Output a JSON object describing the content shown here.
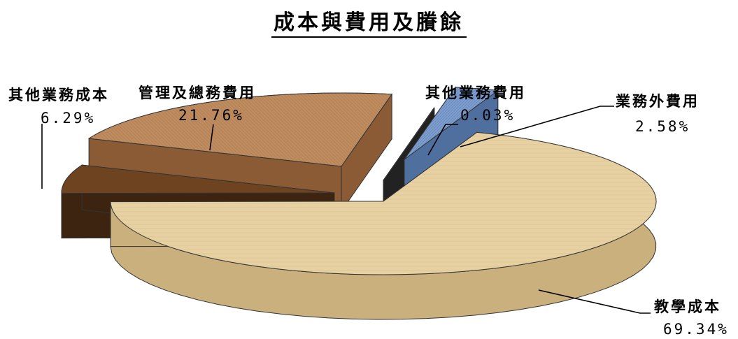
{
  "chart_data": {
    "type": "pie",
    "style": "3d-exploded",
    "title": "成本與費用及賸餘",
    "slices": [
      {
        "label": "教學成本",
        "value": 69.34,
        "value_label": "69.34%",
        "color": "#e7d1a2",
        "side_color": "#c9b07c"
      },
      {
        "label": "其他業務成本",
        "value": 6.29,
        "value_label": "6.29%",
        "color": "#6e4320",
        "side_color": "#3d2410"
      },
      {
        "label": "管理及總務費用",
        "value": 21.76,
        "value_label": "21.76%",
        "color": "#bf8c60",
        "side_color": "#8b5b35"
      },
      {
        "label": "其他業務費用",
        "value": 0.03,
        "value_label": "0.03%",
        "color": "#4a4a4a",
        "side_color": "#222222"
      },
      {
        "label": "業務外費用",
        "value": 2.58,
        "value_label": "2.58%",
        "color": "#7f9fcf",
        "side_color": "#4f6f9f"
      }
    ]
  }
}
